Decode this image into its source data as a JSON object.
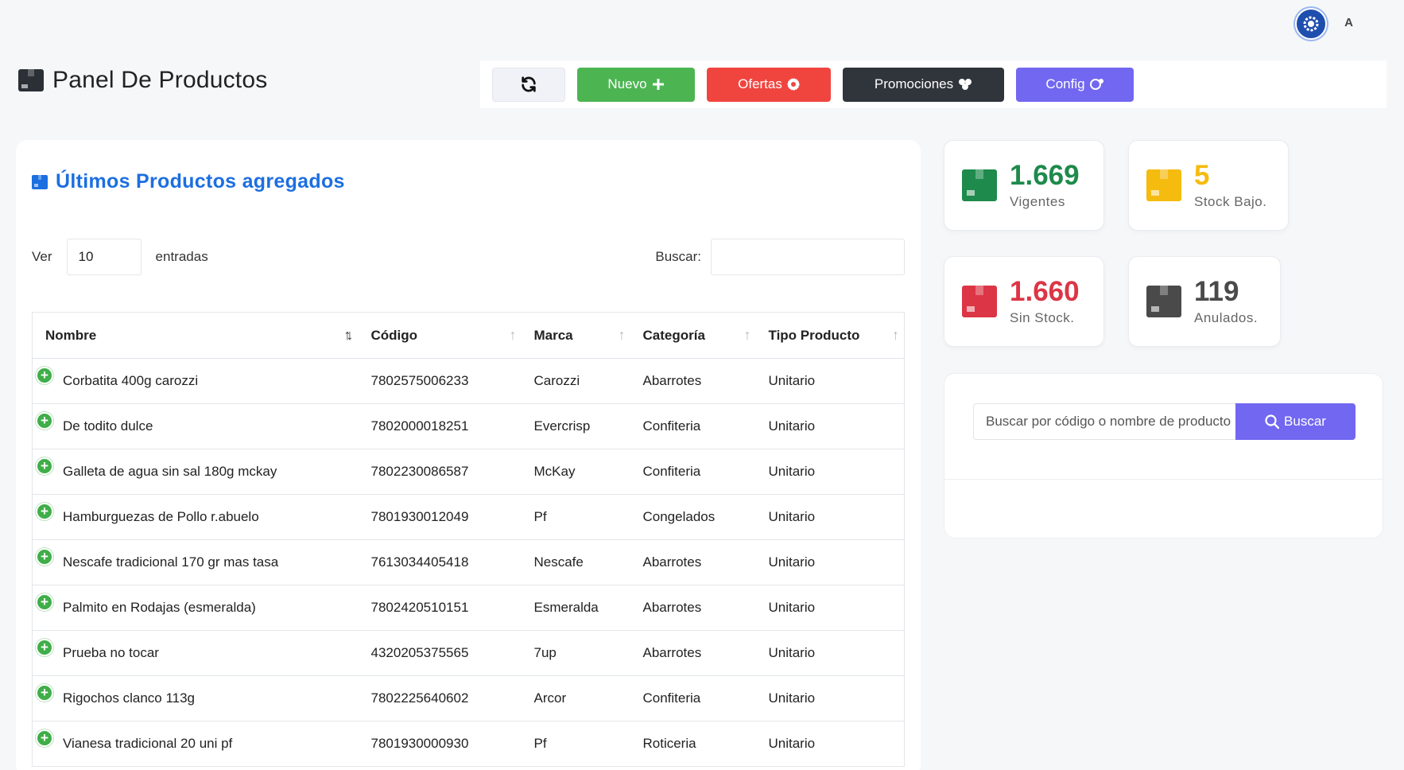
{
  "user": {
    "initial": "A"
  },
  "header": {
    "title": "Panel De Productos"
  },
  "toolbar": {
    "nuevo_label": "Nuevo",
    "ofertas_label": "Ofertas",
    "promociones_label": "Promociones",
    "config_label": "Config"
  },
  "products_card": {
    "title": "Últimos Productos agregados",
    "length_prefix": "Ver",
    "length_value": "10",
    "length_suffix": "entradas",
    "search_label": "Buscar:",
    "columns": [
      "Nombre",
      "Código",
      "Marca",
      "Categoría",
      "Tipo Producto"
    ],
    "rows": [
      [
        "Corbatita 400g carozzi",
        "7802575006233",
        "Carozzi",
        "Abarrotes",
        "Unitario"
      ],
      [
        "De todito dulce",
        "7802000018251",
        "Evercrisp",
        "Confiteria",
        "Unitario"
      ],
      [
        "Galleta de agua sin sal 180g mckay",
        "7802230086587",
        "McKay",
        "Confiteria",
        "Unitario"
      ],
      [
        "Hamburguezas de Pollo r.abuelo",
        "7801930012049",
        "Pf",
        "Congelados",
        "Unitario"
      ],
      [
        "Nescafe tradicional 170 gr mas tasa",
        "7613034405418",
        "Nescafe",
        "Abarrotes",
        "Unitario"
      ],
      [
        "Palmito en Rodajas (esmeralda)",
        "7802420510151",
        "Esmeralda",
        "Abarrotes",
        "Unitario"
      ],
      [
        "Prueba no tocar",
        "4320205375565",
        "7up",
        "Abarrotes",
        "Unitario"
      ],
      [
        "Rigochos clanco 113g",
        "7802225640602",
        "Arcor",
        "Confiteria",
        "Unitario"
      ],
      [
        "Vianesa tradicional 20 uni pf",
        "7801930000930",
        "Pf",
        "Roticeria",
        "Unitario"
      ]
    ]
  },
  "stats": [
    {
      "value": "1.669",
      "label": "Vigentes",
      "color": "#1e8a4c"
    },
    {
      "value": "5",
      "label": "Stock Bajo.",
      "color": "#f5bb0f"
    },
    {
      "value": "1.660",
      "label": "Sin Stock.",
      "color": "#dc3545"
    },
    {
      "value": "119",
      "label": "Anulados.",
      "color": "#4a4a4a"
    }
  ],
  "product_search": {
    "placeholder": "Buscar por código o nombre de producto",
    "button_label": "Buscar"
  },
  "icons": {
    "avatar": "gear-icon",
    "title": "box-icon",
    "refresh": "refresh-icon",
    "nuevo": "plus-icon",
    "ofertas": "badge-icon",
    "promociones": "clover-icon",
    "config": "user-gear-icon",
    "search": "search-icon"
  }
}
